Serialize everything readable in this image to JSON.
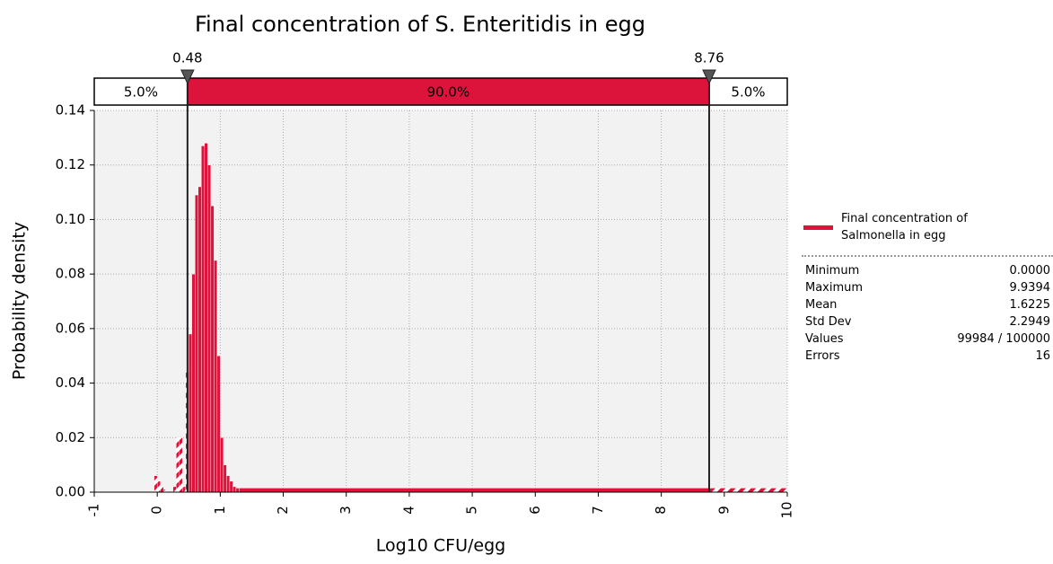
{
  "chart_data": {
    "type": "histogram",
    "title": "Final concentration of S. Enteritidis in egg",
    "xlabel": "Log10 CFU/egg",
    "ylabel": "Probability density",
    "bins": [
      -0.05,
      0,
      0.05,
      0.1,
      0.15,
      0.2,
      0.25,
      0.3,
      0.35,
      0.4,
      0.45,
      0.5,
      0.55,
      0.6,
      0.65,
      0.7,
      0.75,
      0.8,
      0.85,
      0.9,
      0.95,
      1.0,
      1.05,
      1.1,
      1.15,
      1.2,
      1.25,
      1.3,
      10
    ],
    "series": [
      {
        "name": "Final concentration of Salmonella in egg",
        "color": "#dc143c",
        "values": [
          0.006,
          0.004,
          0.002,
          0.001,
          0,
          0,
          0.002,
          0.02,
          0.02,
          0.002,
          0.044,
          0.058,
          0.08,
          0.109,
          0.112,
          0.127,
          0.128,
          0.12,
          0.105,
          0.085,
          0.05,
          0.02,
          0.01,
          0.006,
          0.004,
          0.002,
          0.0015,
          0.0015
        ]
      }
    ],
    "xlim": [
      -1,
      10
    ],
    "xticks": [
      -1,
      0,
      1,
      2,
      3,
      4,
      5,
      6,
      7,
      8,
      9,
      10
    ],
    "ylim": [
      0,
      0.14
    ],
    "yticks": [
      {
        "value": 0,
        "label": "0.00"
      },
      {
        "value": 0.02,
        "label": "0.02"
      },
      {
        "value": 0.04,
        "label": "0.04"
      },
      {
        "value": 0.06,
        "label": "0.06"
      },
      {
        "value": 0.08,
        "label": "0.08"
      },
      {
        "value": 0.1,
        "label": "0.10"
      },
      {
        "value": 0.12,
        "label": "0.12"
      },
      {
        "value": 0.14,
        "label": "0.14"
      }
    ],
    "grid": true,
    "delimiters": [
      0.48,
      8.76
    ],
    "bands": {
      "values": [
        5,
        90,
        5
      ],
      "value_labels": [
        "5.0%",
        "90.0%",
        "5.0%"
      ]
    },
    "stats": [
      [
        "Minimum",
        "0.0000"
      ],
      [
        "Maximum",
        "9.9394"
      ],
      [
        "Mean",
        "1.6225"
      ],
      [
        "Std Dev",
        "2.2949"
      ],
      [
        "Values",
        "99984 / 100000"
      ],
      [
        "Errors",
        "16"
      ]
    ]
  }
}
